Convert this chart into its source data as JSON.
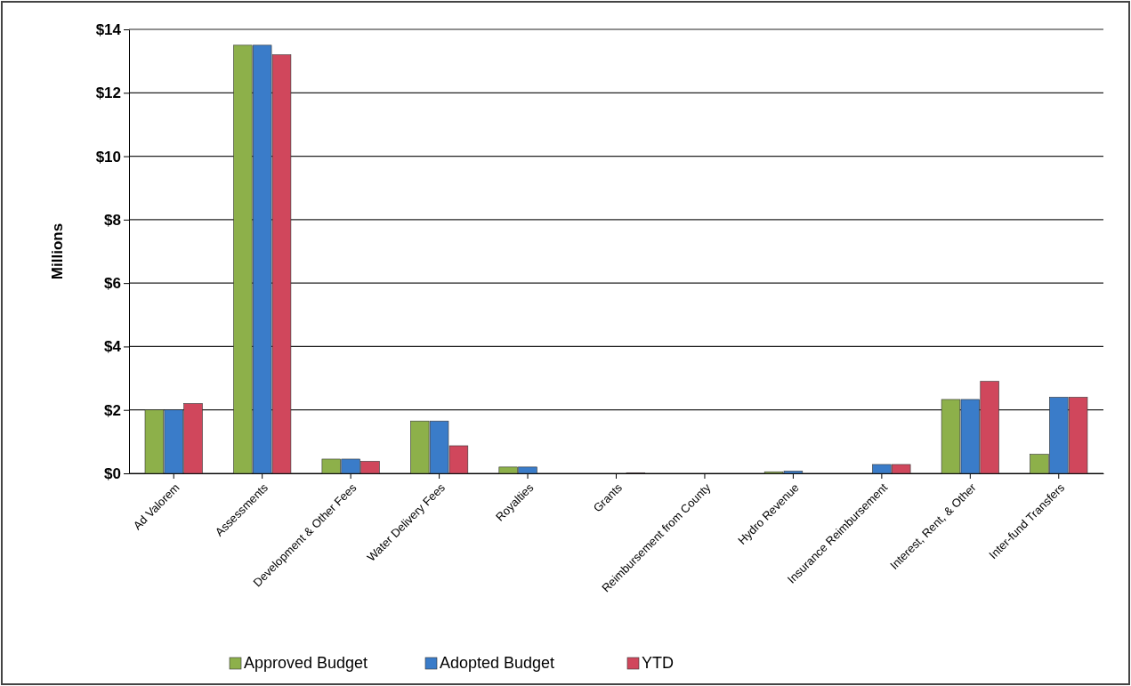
{
  "chart_data": {
    "type": "bar",
    "ylabel": "Millions",
    "categories": [
      "Ad Valorem",
      "Assessments",
      "Development & Other Fees",
      "Water Delivery Fees",
      "Royalties",
      "Grants",
      "Reimbursement from County",
      "Hydro Revenue",
      "Insurance Reimbursement",
      "Interest, Rent, & Other",
      "Inter-fund Transfers"
    ],
    "series": [
      {
        "name": "Approved Budget",
        "color": "#8db04a",
        "values": [
          2.0,
          13.5,
          0.45,
          1.65,
          0.2,
          0,
          0,
          0.05,
          0,
          2.33,
          0.6
        ]
      },
      {
        "name": "Adopted Budget",
        "color": "#3a7cc9",
        "values": [
          2.0,
          13.5,
          0.45,
          1.65,
          0.2,
          0,
          0,
          0.07,
          0.28,
          2.33,
          2.4
        ]
      },
      {
        "name": "YTD",
        "color": "#d0475c",
        "values": [
          2.2,
          13.2,
          0.38,
          0.87,
          0,
          0.02,
          0,
          0,
          0.28,
          2.9,
          2.4
        ]
      }
    ],
    "ylim": [
      0,
      14
    ],
    "yticks": [
      {
        "value": 0,
        "label": "$0"
      },
      {
        "value": 2,
        "label": "$2"
      },
      {
        "value": 4,
        "label": "$4"
      },
      {
        "value": 6,
        "label": "$6"
      },
      {
        "value": 8,
        "label": "$8"
      },
      {
        "value": 10,
        "label": "$10"
      },
      {
        "value": 12,
        "label": "$12"
      },
      {
        "value": 14,
        "label": "$14"
      }
    ],
    "grid": "y",
    "legend": "bottom"
  }
}
